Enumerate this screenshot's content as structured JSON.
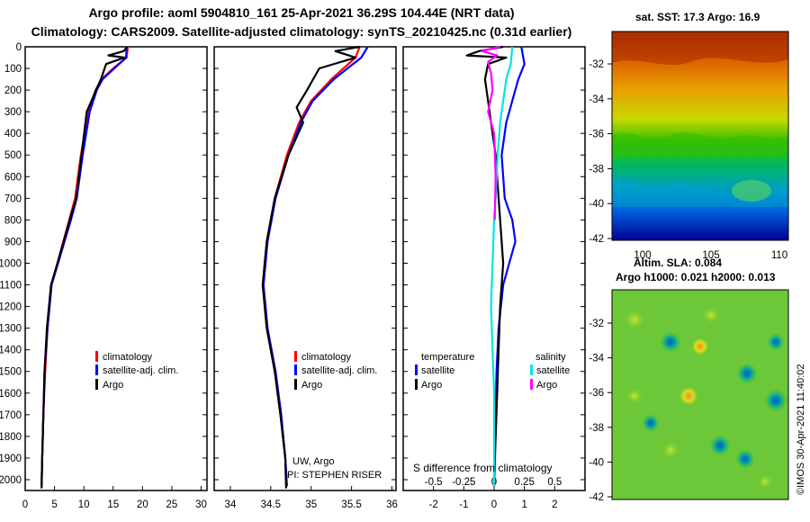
{
  "header": {
    "line1": "Argo profile: aoml 5904810_161 25-Apr-2021 36.29S 104.44E (NRT data)",
    "line2": "Climatology: CARS2009. Satellite-adjusted climatology: synTS_20210425.nc (0.31d earlier)"
  },
  "colors": {
    "climatology": "#ff0000",
    "satellite": "#0000ff",
    "argo": "#000000",
    "sal_satellite": "#00e5e5",
    "sal_argo": "#ff00ff"
  },
  "chart_data": [
    {
      "type": "line",
      "panel": "temperature",
      "xlim": [
        0,
        31
      ],
      "ylim": [
        2050,
        0
      ],
      "x_ticks": [
        0,
        5,
        10,
        15,
        20,
        25,
        30
      ],
      "y_ticks": [
        0,
        100,
        200,
        300,
        400,
        500,
        600,
        700,
        800,
        900,
        1000,
        1100,
        1200,
        1300,
        1400,
        1500,
        1600,
        1700,
        1800,
        1900,
        2000
      ],
      "legend": [
        "climatology",
        "satellite-adj. clim.",
        "Argo"
      ],
      "series": [
        {
          "name": "climatology",
          "color": "#ff0000",
          "points": [
            [
              17.5,
              0
            ],
            [
              17.3,
              50
            ],
            [
              15,
              100
            ],
            [
              13,
              150
            ],
            [
              12,
              200
            ],
            [
              10.8,
              300
            ],
            [
              9.5,
              500
            ],
            [
              8.5,
              700
            ],
            [
              7.5,
              800
            ],
            [
              5.5,
              1000
            ],
            [
              4.5,
              1100
            ],
            [
              3.8,
              1300
            ],
            [
              3.4,
              1500
            ],
            [
              3.1,
              1700
            ],
            [
              2.9,
              1900
            ],
            [
              2.8,
              2030
            ]
          ]
        },
        {
          "name": "satellite-adj. clim.",
          "color": "#0000ff",
          "points": [
            [
              17.3,
              0
            ],
            [
              17.2,
              50
            ],
            [
              15.2,
              100
            ],
            [
              13.2,
              150
            ],
            [
              12.2,
              200
            ],
            [
              11,
              300
            ],
            [
              9.8,
              500
            ],
            [
              8.8,
              700
            ],
            [
              7.8,
              800
            ],
            [
              5.6,
              1000
            ],
            [
              4.5,
              1100
            ],
            [
              3.8,
              1300
            ],
            [
              3.3,
              1500
            ],
            [
              3.1,
              1700
            ],
            [
              2.9,
              1900
            ],
            [
              2.8,
              2030
            ]
          ]
        },
        {
          "name": "Argo",
          "color": "#000000",
          "points": [
            [
              17.4,
              0
            ],
            [
              16.8,
              20
            ],
            [
              14.2,
              40
            ],
            [
              16.9,
              50
            ],
            [
              13.8,
              80
            ],
            [
              12.9,
              150
            ],
            [
              12.1,
              200
            ],
            [
              10.5,
              300
            ],
            [
              9.6,
              500
            ],
            [
              8.7,
              700
            ],
            [
              7.6,
              800
            ],
            [
              5.5,
              1000
            ],
            [
              4.4,
              1100
            ],
            [
              3.7,
              1300
            ],
            [
              3.3,
              1500
            ],
            [
              3.1,
              1700
            ],
            [
              2.9,
              1900
            ],
            [
              2.8,
              2040
            ]
          ]
        }
      ]
    },
    {
      "type": "line",
      "panel": "salinity",
      "xlim": [
        33.8,
        36.05
      ],
      "ylim": [
        2050,
        0
      ],
      "x_ticks": [
        34,
        34.5,
        35,
        35.5,
        36
      ],
      "legend": [
        "climatology",
        "satellite-adj. clim.",
        "Argo"
      ],
      "annotations": [
        "UW, Argo",
        "PI: STEPHEN RISER"
      ],
      "series": [
        {
          "name": "climatology",
          "color": "#ff0000",
          "points": [
            [
              35.6,
              0
            ],
            [
              35.55,
              50
            ],
            [
              35.4,
              100
            ],
            [
              35.25,
              150
            ],
            [
              35.0,
              250
            ],
            [
              34.85,
              350
            ],
            [
              34.7,
              500
            ],
            [
              34.55,
              700
            ],
            [
              34.45,
              900
            ],
            [
              34.4,
              1100
            ],
            [
              34.45,
              1300
            ],
            [
              34.55,
              1500
            ],
            [
              34.62,
              1700
            ],
            [
              34.68,
              1900
            ],
            [
              34.7,
              2030
            ]
          ]
        },
        {
          "name": "satellite-adj. clim.",
          "color": "#0000ff",
          "points": [
            [
              35.7,
              0
            ],
            [
              35.62,
              50
            ],
            [
              35.45,
              100
            ],
            [
              35.28,
              150
            ],
            [
              35.02,
              250
            ],
            [
              34.87,
              350
            ],
            [
              34.72,
              500
            ],
            [
              34.56,
              700
            ],
            [
              34.46,
              900
            ],
            [
              34.41,
              1100
            ],
            [
              34.46,
              1300
            ],
            [
              34.56,
              1500
            ],
            [
              34.63,
              1700
            ],
            [
              34.68,
              1900
            ],
            [
              34.7,
              2030
            ]
          ]
        },
        {
          "name": "Argo",
          "color": "#000000",
          "points": [
            [
              35.6,
              0
            ],
            [
              35.3,
              20
            ],
            [
              35.55,
              50
            ],
            [
              35.1,
              100
            ],
            [
              34.95,
              200
            ],
            [
              34.82,
              280
            ],
            [
              34.9,
              350
            ],
            [
              34.72,
              500
            ],
            [
              34.55,
              700
            ],
            [
              34.45,
              900
            ],
            [
              34.4,
              1100
            ],
            [
              34.45,
              1300
            ],
            [
              34.55,
              1500
            ],
            [
              34.62,
              1700
            ],
            [
              34.68,
              1900
            ],
            [
              34.69,
              2040
            ]
          ]
        }
      ]
    },
    {
      "type": "line",
      "panel": "difference",
      "xlabel": "S difference from climatology",
      "lower_axis": {
        "xlim": [
          -3,
          3
        ],
        "ticks": [
          -2,
          -1,
          0,
          1,
          2
        ]
      },
      "upper_axis": {
        "ticks": [
          -0.5,
          -0.25,
          0,
          0.25,
          0.5
        ]
      },
      "ylim": [
        2050,
        0
      ],
      "legend_left_title": "temperature",
      "legend_right_title": "salinity",
      "legend_left": [
        "satellite",
        "Argo"
      ],
      "legend_right": [
        "satellite",
        "Argo"
      ],
      "series": [
        {
          "name": "temperature satellite",
          "color": "#0000ff",
          "points": [
            [
              0.9,
              0
            ],
            [
              1.0,
              80
            ],
            [
              0.8,
              150
            ],
            [
              0.6,
              250
            ],
            [
              0.4,
              350
            ],
            [
              0.25,
              500
            ],
            [
              0.35,
              700
            ],
            [
              0.6,
              800
            ],
            [
              0.7,
              900
            ],
            [
              0.5,
              1000
            ],
            [
              0.3,
              1100
            ],
            [
              0.15,
              1300
            ],
            [
              0.08,
              1500
            ],
            [
              0.05,
              1700
            ],
            [
              0.02,
              1900
            ],
            [
              0.0,
              2030
            ]
          ]
        },
        {
          "name": "temperature Argo",
          "color": "#000000",
          "points": [
            [
              0.3,
              0
            ],
            [
              -0.5,
              20
            ],
            [
              -0.9,
              40
            ],
            [
              0.4,
              50
            ],
            [
              -0.2,
              80
            ],
            [
              -0.3,
              150
            ],
            [
              -0.2,
              250
            ],
            [
              -0.1,
              350
            ],
            [
              0.05,
              500
            ],
            [
              0.15,
              700
            ],
            [
              0.2,
              800
            ],
            [
              0.3,
              1000
            ],
            [
              0.2,
              1200
            ],
            [
              0.15,
              1400
            ],
            [
              0.1,
              1600
            ],
            [
              0.05,
              1800
            ],
            [
              0.0,
              2030
            ]
          ]
        },
        {
          "name": "salinity satellite",
          "color": "#00e5e5",
          "points": [
            [
              0.6,
              0
            ],
            [
              0.55,
              80
            ],
            [
              0.4,
              150
            ],
            [
              0.3,
              250
            ],
            [
              0.2,
              350
            ],
            [
              0.12,
              500
            ],
            [
              0.05,
              700
            ],
            [
              0.0,
              800
            ],
            [
              -0.05,
              1000
            ],
            [
              -0.1,
              1200
            ],
            [
              -0.05,
              1400
            ],
            [
              0.0,
              1600
            ],
            [
              0.0,
              1800
            ],
            [
              0.0,
              2030
            ]
          ]
        },
        {
          "name": "salinity Argo",
          "color": "#ff00ff",
          "points": [
            [
              0.2,
              0
            ],
            [
              -0.4,
              20
            ],
            [
              0.1,
              40
            ],
            [
              -0.2,
              70
            ],
            [
              -0.1,
              120
            ],
            [
              -0.05,
              200
            ],
            [
              -0.2,
              300
            ],
            [
              0.0,
              400
            ],
            [
              0.05,
              600
            ],
            [
              0.02,
              800
            ]
          ]
        }
      ]
    }
  ],
  "sst_map": {
    "title": "sat. SST: 17.3 Argo: 16.9",
    "y_ticks": [
      "-32",
      "-34",
      "-36",
      "-38",
      "-40",
      "-42"
    ],
    "x_ticks": [
      "100",
      "105",
      "110"
    ]
  },
  "sla_map": {
    "title1": "Altim. SLA: 0.084",
    "title2": "Argo h1000: 0.021 h2000: 0.013",
    "y_ticks": [
      "-32",
      "-34",
      "-36",
      "-38",
      "-40",
      "-42"
    ],
    "stamp": "©IMOS 30-Apr-2021 11:40:02"
  }
}
